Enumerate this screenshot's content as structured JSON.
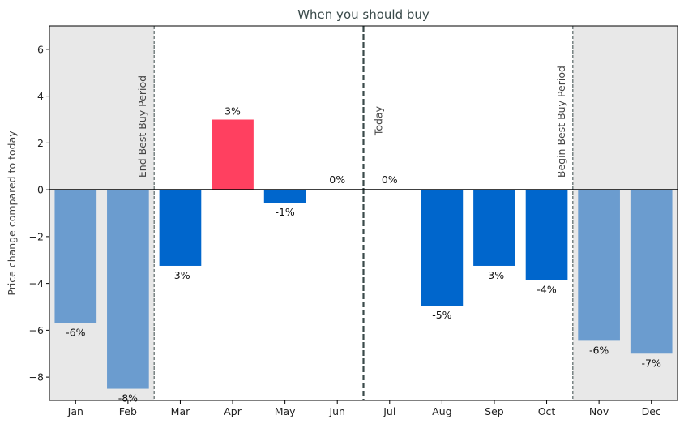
{
  "chart_data": {
    "type": "bar",
    "title": "When you should buy",
    "xlabel": "",
    "ylabel": "Price change compared to today",
    "categories": [
      "Jan",
      "Feb",
      "Mar",
      "Apr",
      "May",
      "Jun",
      "Jul",
      "Aug",
      "Sep",
      "Oct",
      "Nov",
      "Dec"
    ],
    "values": [
      -5.7,
      -8.5,
      -3.25,
      3.0,
      -0.55,
      0.0,
      0.0,
      -4.95,
      -3.25,
      -3.85,
      -6.45,
      -7.0
    ],
    "data_labels": [
      "-6%",
      "-8%",
      "-3%",
      "3%",
      "-1%",
      "0%",
      "0%",
      "-5%",
      "-3%",
      "-4%",
      "-6%",
      "-7%"
    ],
    "bar_colors": [
      "#6b9ccf",
      "#6b9ccf",
      "#0066cc",
      "#ff4060",
      "#0066cc",
      "#0066cc",
      "#0066cc",
      "#0066cc",
      "#0066cc",
      "#0066cc",
      "#6b9ccf",
      "#6b9ccf"
    ],
    "ylim": [
      -9,
      7
    ],
    "yticks": [
      -8,
      -6,
      -4,
      -2,
      0,
      2,
      4,
      6
    ],
    "grid": false,
    "shaded_regions": [
      {
        "from": "Jan",
        "to": "Feb",
        "color": "#e8e8e8"
      },
      {
        "from": "Nov",
        "to": "Dec",
        "color": "#e8e8e8"
      }
    ],
    "vertical_markers": [
      {
        "label": "End Best Buy Period",
        "between": [
          "Feb",
          "Mar"
        ],
        "style": "dashed-thin"
      },
      {
        "label": "Today",
        "between": [
          "Jun",
          "Jul"
        ],
        "style": "dashed-thick"
      },
      {
        "label": "Begin Best Buy Period",
        "between": [
          "Oct",
          "Nov"
        ],
        "style": "dashed-thin"
      }
    ]
  }
}
